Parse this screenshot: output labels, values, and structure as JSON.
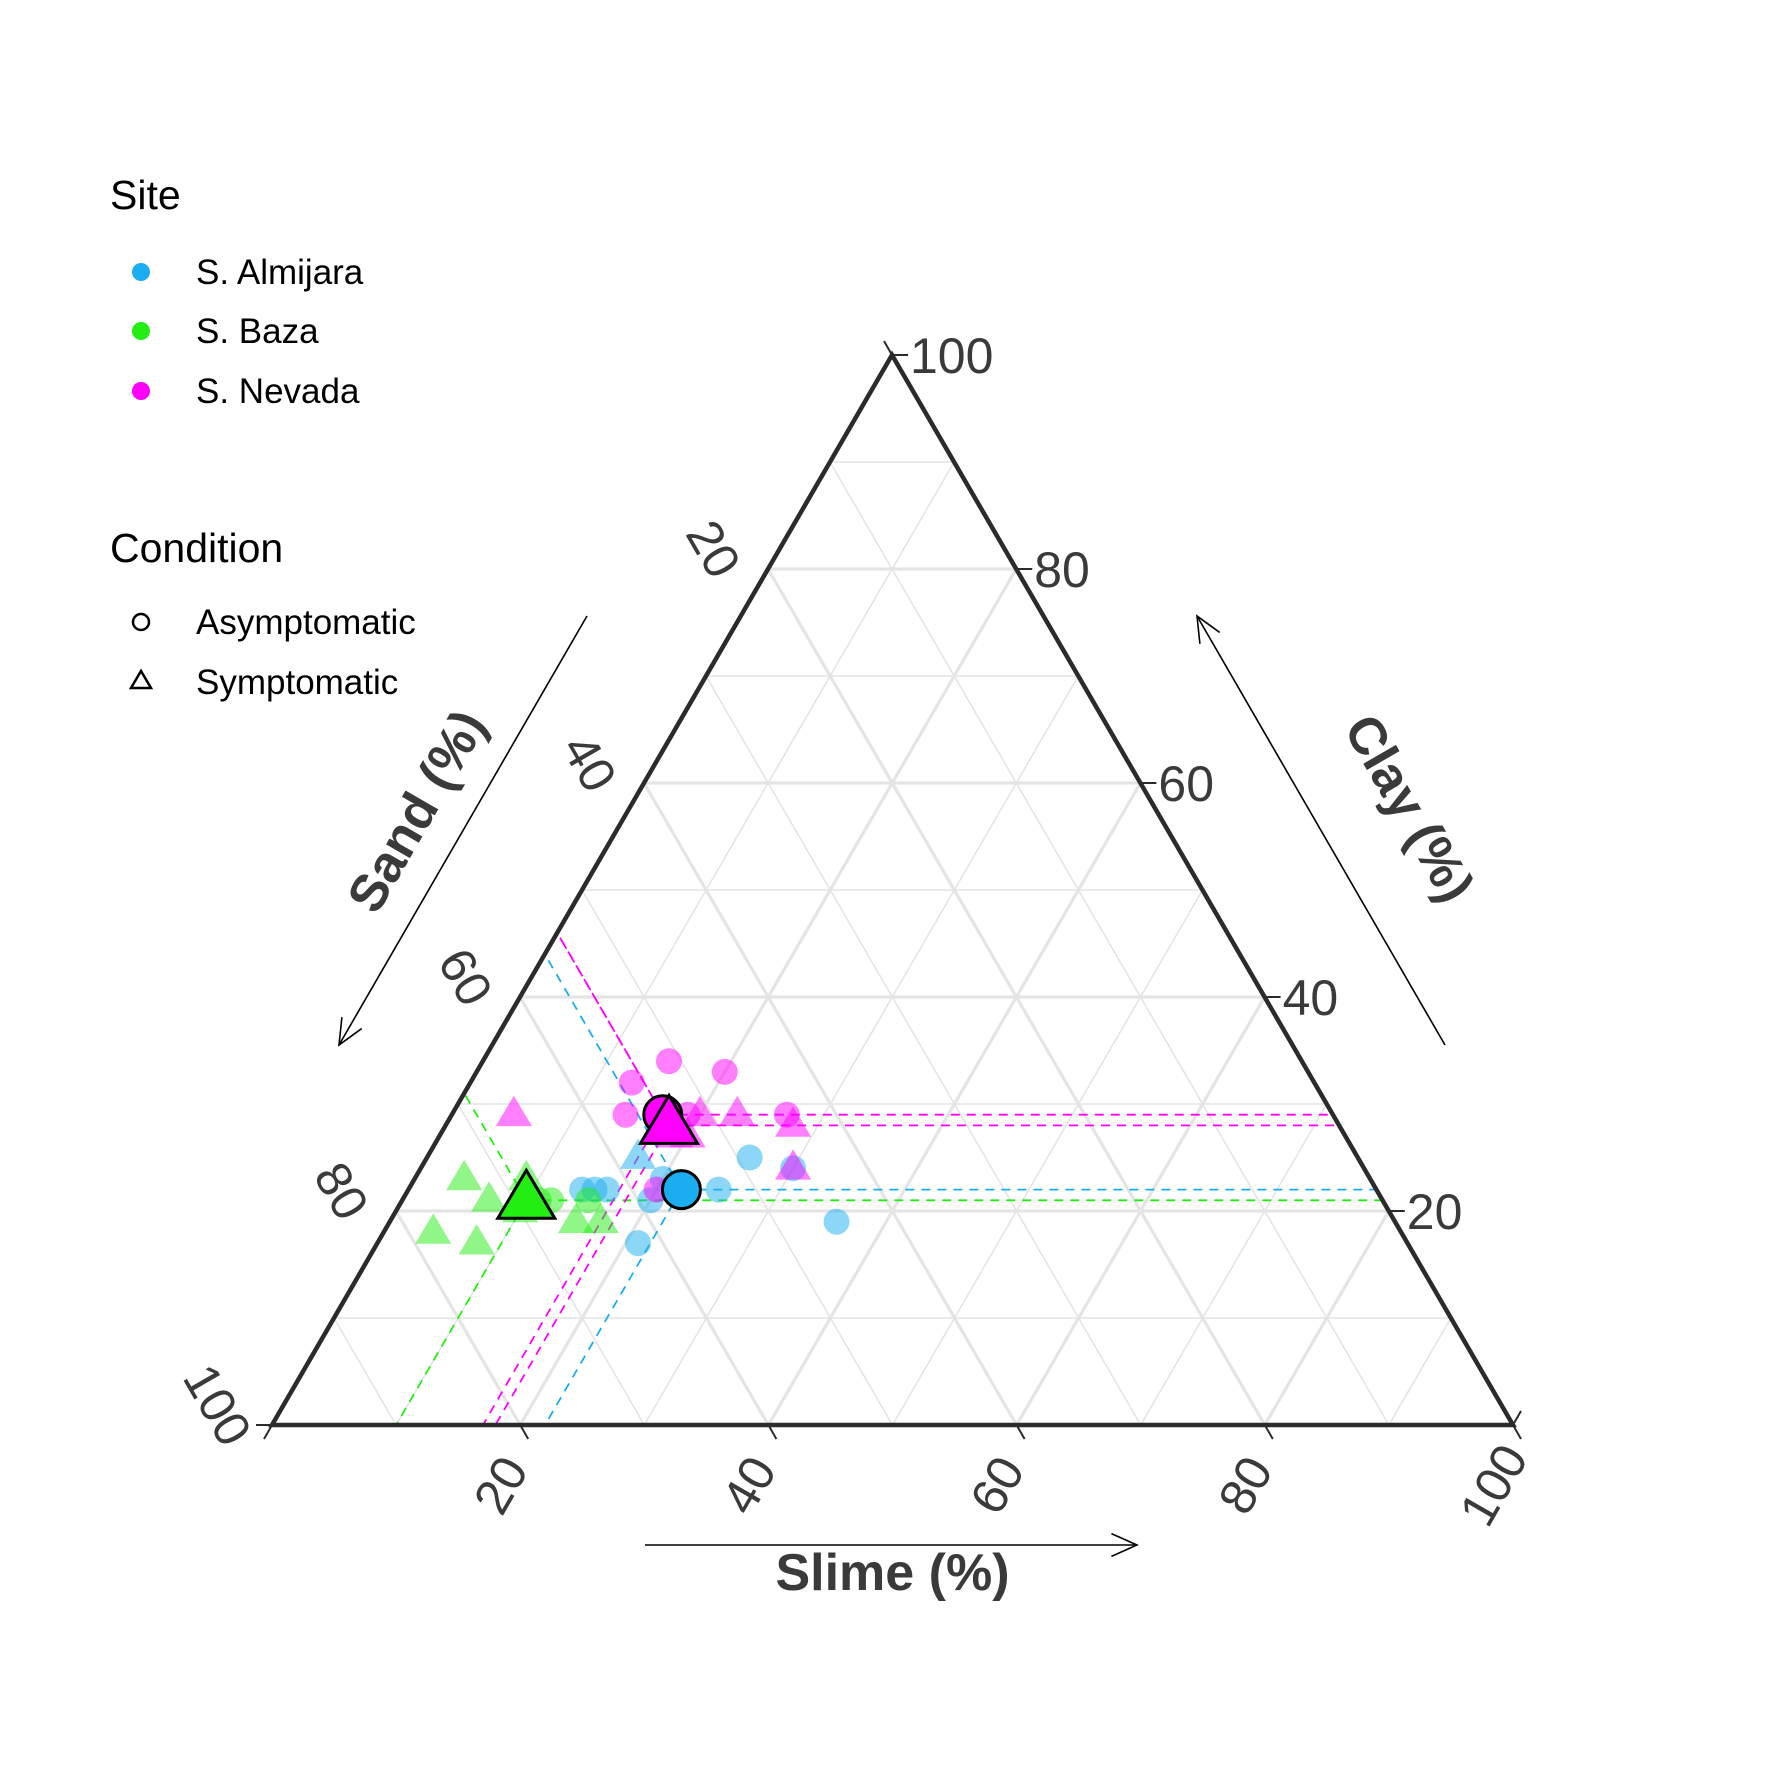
{
  "chart_data": {
    "type": "scatter",
    "subtype": "ternary",
    "title": "",
    "axes": {
      "top": {
        "label": "Clay (%)",
        "ticks": [
          20,
          40,
          60,
          80,
          100
        ]
      },
      "left": {
        "label": "Sand (%)",
        "ticks": [
          20,
          40,
          60,
          80,
          100
        ]
      },
      "right": {
        "label": "Slime (%)",
        "ticks": [
          20,
          40,
          60,
          80,
          100
        ]
      }
    },
    "range": [
      0,
      100
    ],
    "grid": true,
    "legend": {
      "placement": "top-left",
      "site": {
        "title": "Site",
        "items": [
          {
            "label": "S. Almijara",
            "color": "#1AADF0"
          },
          {
            "label": "S. Baza",
            "color": "#22EE11"
          },
          {
            "label": "S. Nevada",
            "color": "#FF00FF"
          }
        ]
      },
      "condition": {
        "title": "Condition",
        "items": [
          {
            "label": "Asymptomatic",
            "shape": "circle"
          },
          {
            "label": "Symptomatic",
            "shape": "triangle"
          }
        ]
      }
    },
    "points": [
      {
        "site": "S. Almijara",
        "condition": "Asymptomatic",
        "sand": 62,
        "slime": 16,
        "clay": 22
      },
      {
        "site": "S. Almijara",
        "condition": "Asymptomatic",
        "sand": 63,
        "slime": 15,
        "clay": 22
      },
      {
        "site": "S. Almijara",
        "condition": "Asymptomatic",
        "sand": 64,
        "slime": 14,
        "clay": 22
      },
      {
        "site": "S. Almijara",
        "condition": "Asymptomatic",
        "sand": 57,
        "slime": 20,
        "clay": 23
      },
      {
        "site": "S. Almijara",
        "condition": "Asymptomatic",
        "sand": 53,
        "slime": 25,
        "clay": 22
      },
      {
        "site": "S. Almijara",
        "condition": "Asymptomatic",
        "sand": 46,
        "slime": 30,
        "clay": 24
      },
      {
        "site": "S. Almijara",
        "condition": "Asymptomatic",
        "sand": 45,
        "slime": 36,
        "clay": 19
      },
      {
        "site": "S. Almijara",
        "condition": "Asymptomatic",
        "sand": 62,
        "slime": 21,
        "clay": 17
      },
      {
        "site": "S. Almijara",
        "condition": "Asymptomatic",
        "sand": 59,
        "slime": 20,
        "clay": 21
      },
      {
        "site": "S. Almijara",
        "condition": "Asymptomatic",
        "sand": 49,
        "slime": 26,
        "clay": 25
      },
      {
        "site": "S. Almijara",
        "condition": "Symptomatic",
        "sand": 58,
        "slime": 17,
        "clay": 25
      },
      {
        "site": "S. Baza",
        "condition": "Asymptomatic",
        "sand": 67,
        "slime": 12,
        "clay": 21
      },
      {
        "site": "S. Baza",
        "condition": "Asymptomatic",
        "sand": 68,
        "slime": 11,
        "clay": 21
      },
      {
        "site": "S. Baza",
        "condition": "Asymptomatic",
        "sand": 64,
        "slime": 15,
        "clay": 21
      },
      {
        "site": "S. Baza",
        "condition": "Symptomatic",
        "sand": 73,
        "slime": 4,
        "clay": 23
      },
      {
        "site": "S. Baza",
        "condition": "Symptomatic",
        "sand": 68,
        "slime": 9,
        "clay": 23
      },
      {
        "site": "S. Baza",
        "condition": "Symptomatic",
        "sand": 72,
        "slime": 7,
        "clay": 21
      },
      {
        "site": "S. Baza",
        "condition": "Symptomatic",
        "sand": 78,
        "slime": 4,
        "clay": 18
      },
      {
        "site": "S. Baza",
        "condition": "Symptomatic",
        "sand": 75,
        "slime": 8,
        "clay": 17
      },
      {
        "site": "S. Baza",
        "condition": "Symptomatic",
        "sand": 66,
        "slime": 15,
        "clay": 19
      },
      {
        "site": "S. Baza",
        "condition": "Symptomatic",
        "sand": 64,
        "slime": 17,
        "clay": 19
      },
      {
        "site": "S. Baza",
        "condition": "Symptomatic",
        "sand": 70,
        "slime": 10,
        "clay": 20
      },
      {
        "site": "S. Nevada",
        "condition": "Asymptomatic",
        "sand": 51,
        "slime": 15,
        "clay": 34
      },
      {
        "site": "S. Nevada",
        "condition": "Asymptomatic",
        "sand": 55,
        "slime": 13,
        "clay": 32
      },
      {
        "site": "S. Nevada",
        "condition": "Asymptomatic",
        "sand": 47,
        "slime": 20,
        "clay": 33
      },
      {
        "site": "S. Nevada",
        "condition": "Asymptomatic",
        "sand": 57,
        "slime": 14,
        "clay": 29
      },
      {
        "site": "S. Nevada",
        "condition": "Asymptomatic",
        "sand": 54,
        "slime": 17,
        "clay": 29
      },
      {
        "site": "S. Nevada",
        "condition": "Asymptomatic",
        "sand": 44,
        "slime": 27,
        "clay": 29
      },
      {
        "site": "S. Nevada",
        "condition": "Asymptomatic",
        "sand": 58,
        "slime": 20,
        "clay": 22
      },
      {
        "site": "S. Nevada",
        "condition": "Asymptomatic",
        "sand": 52,
        "slime": 19,
        "clay": 29
      },
      {
        "site": "S. Nevada",
        "condition": "Symptomatic",
        "sand": 66,
        "slime": 5,
        "clay": 29
      },
      {
        "site": "S. Nevada",
        "condition": "Symptomatic",
        "sand": 51,
        "slime": 20,
        "clay": 29
      },
      {
        "site": "S. Nevada",
        "condition": "Symptomatic",
        "sand": 48,
        "slime": 23,
        "clay": 29
      },
      {
        "site": "S. Nevada",
        "condition": "Symptomatic",
        "sand": 44,
        "slime": 28,
        "clay": 28
      },
      {
        "site": "S. Nevada",
        "condition": "Symptomatic",
        "sand": 54,
        "slime": 19,
        "clay": 27
      },
      {
        "site": "S. Nevada",
        "condition": "Symptomatic",
        "sand": 46,
        "slime": 30,
        "clay": 24
      },
      {
        "site": "S. Nevada",
        "condition": "Symptomatic",
        "sand": 53,
        "slime": 20,
        "clay": 27
      }
    ],
    "means": [
      {
        "site": "S. Almijara",
        "condition": "Asymptomatic",
        "sand": 56,
        "slime": 22,
        "clay": 22
      },
      {
        "site": "S. Baza",
        "condition": "Symptomatic",
        "sand": 69,
        "slime": 10,
        "clay": 21
      },
      {
        "site": "S. Nevada",
        "condition": "Asymptomatic",
        "sand": 54,
        "slime": 17,
        "clay": 29
      },
      {
        "site": "S. Nevada",
        "condition": "Symptomatic",
        "sand": 54,
        "slime": 18,
        "clay": 28
      }
    ]
  }
}
